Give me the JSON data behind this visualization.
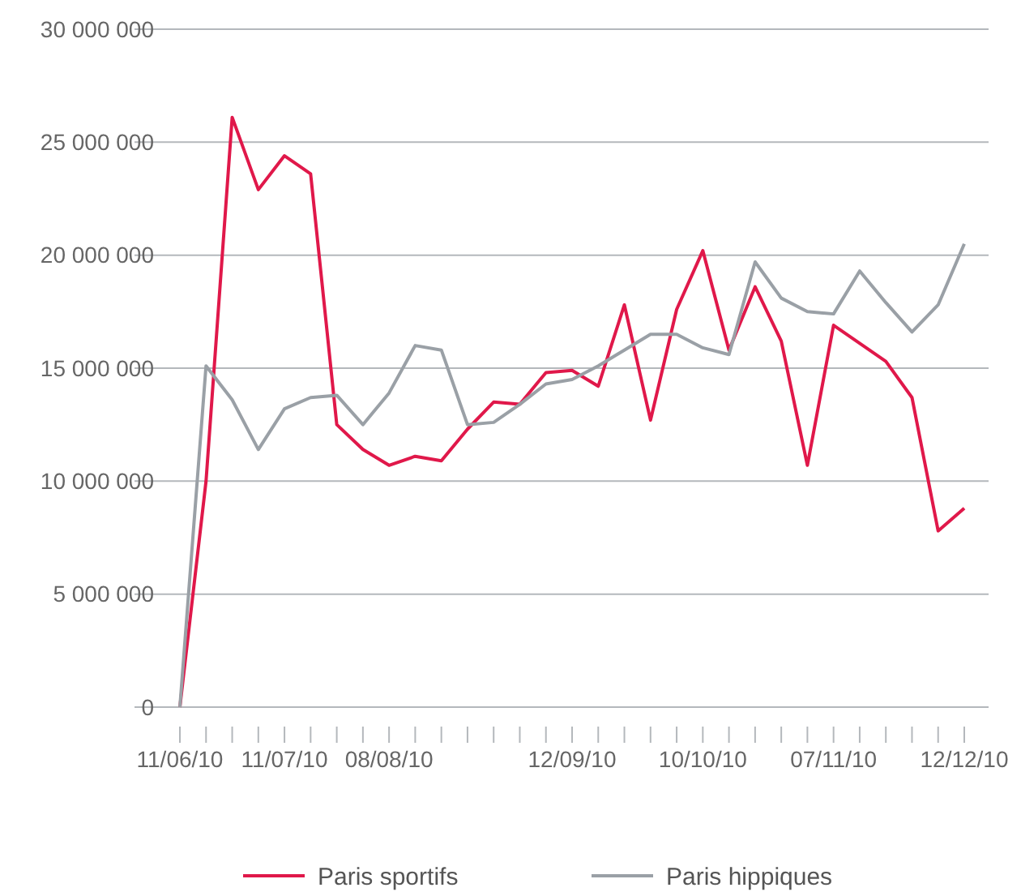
{
  "chart_data": {
    "type": "line",
    "categories": [
      "11/06/10",
      null,
      null,
      null,
      "11/07/10",
      null,
      null,
      null,
      "08/08/10",
      null,
      null,
      null,
      null,
      null,
      null,
      "12/09/10",
      null,
      null,
      null,
      null,
      "10/10/10",
      null,
      null,
      null,
      null,
      "07/11/10",
      null,
      null,
      null,
      null,
      "12/12/10"
    ],
    "series": [
      {
        "name": "Paris sportifs",
        "color": "#e0184a",
        "values": [
          0,
          10000000,
          26100000,
          22900000,
          24400000,
          23600000,
          12500000,
          11400000,
          10700000,
          11100000,
          10900000,
          12300000,
          13500000,
          13400000,
          14800000,
          14900000,
          14200000,
          17800000,
          12700000,
          17600000,
          20200000,
          15800000,
          18600000,
          16200000,
          10700000,
          16900000,
          16100000,
          15300000,
          13700000,
          7800000,
          8800000
        ]
      },
      {
        "name": "Paris hippiques",
        "color": "#9aa0a6",
        "values": [
          0,
          15100000,
          13600000,
          11400000,
          13200000,
          13700000,
          13800000,
          12500000,
          13900000,
          16000000,
          15800000,
          12500000,
          12600000,
          13400000,
          14300000,
          14500000,
          15100000,
          15800000,
          16500000,
          16500000,
          15900000,
          15600000,
          19700000,
          18100000,
          17500000,
          17400000,
          19300000,
          17900000,
          16600000,
          17800000,
          20500000
        ]
      }
    ],
    "ylim": [
      0,
      30000000
    ],
    "yticks": [
      0,
      {
        "value": 5000000,
        "label": "5 000 000"
      },
      {
        "value": 10000000,
        "label": "10 000 000"
      },
      {
        "value": 15000000,
        "label": "15 000 000"
      },
      {
        "value": 20000000,
        "label": "20 000 000"
      },
      {
        "value": 25000000,
        "label": "25 000 000"
      },
      {
        "value": 30000000,
        "label": "30 000 000"
      }
    ],
    "grid": "y",
    "legend": "bottom",
    "marker": "none",
    "line_style": "solid"
  }
}
